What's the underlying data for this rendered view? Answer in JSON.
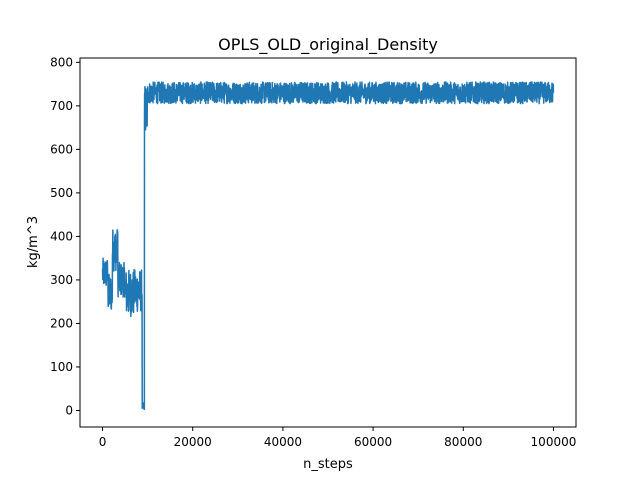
{
  "chart_data": {
    "type": "line",
    "title": "OPLS_OLD_original_Density",
    "xlabel": "n_steps",
    "ylabel": "kg/m^3",
    "xlim": [
      -5000,
      105000
    ],
    "ylim": [
      -38,
      810
    ],
    "xticks": [
      0,
      20000,
      40000,
      60000,
      80000,
      100000
    ],
    "yticks": [
      0,
      100,
      200,
      300,
      400,
      500,
      600,
      700,
      800
    ],
    "grid": false,
    "legend": "none",
    "series_color": "#1f77b4",
    "series": [
      {
        "segments": [
          {
            "x_start": 0,
            "x_end": 1200,
            "y_center": 315,
            "y_amp": 35
          },
          {
            "x_start": 1200,
            "x_end": 2200,
            "y_center": 270,
            "y_amp": 45
          },
          {
            "x_start": 2200,
            "x_end": 3400,
            "y_center": 370,
            "y_amp": 50
          },
          {
            "x_start": 3400,
            "x_end": 5000,
            "y_center": 300,
            "y_amp": 40
          },
          {
            "x_start": 5000,
            "x_end": 7000,
            "y_center": 270,
            "y_amp": 55
          },
          {
            "x_start": 7000,
            "x_end": 8800,
            "y_center": 275,
            "y_amp": 50
          },
          {
            "x_start": 8800,
            "x_end": 9300,
            "y_center": 10,
            "y_amp": 8
          },
          {
            "x_start": 9300,
            "x_end": 10000,
            "y_center": 690,
            "y_amp": 60
          },
          {
            "x_start": 10000,
            "x_end": 100000,
            "y_center": 730,
            "y_amp": 25
          }
        ]
      }
    ]
  }
}
